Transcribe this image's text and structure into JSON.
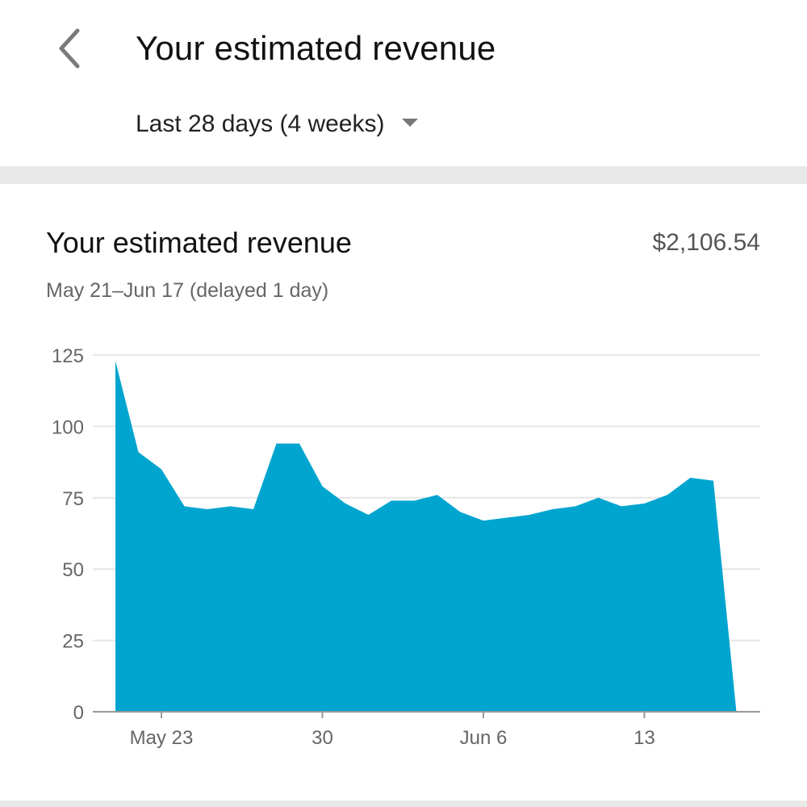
{
  "header": {
    "title": "Your estimated revenue",
    "back_icon": "back-chevron-icon"
  },
  "range_selector": {
    "label": "Last 28 days (4 weeks)",
    "icon": "dropdown-caret-icon"
  },
  "card": {
    "title": "Your estimated revenue",
    "total": "$2,106.54",
    "subtitle": "May 21–Jun 17 (delayed 1 day)"
  },
  "colors": {
    "area_fill": "#00a5cf",
    "gridline": "#e6e6e6",
    "axis": "#999999",
    "divider": "#e8e8e8"
  },
  "chart_data": {
    "type": "area",
    "x": [
      "May 21",
      "May 22",
      "May 23",
      "May 24",
      "May 25",
      "May 26",
      "May 27",
      "May 28",
      "May 29",
      "May 30",
      "May 31",
      "Jun 1",
      "Jun 2",
      "Jun 3",
      "Jun 4",
      "Jun 5",
      "Jun 6",
      "Jun 7",
      "Jun 8",
      "Jun 9",
      "Jun 10",
      "Jun 11",
      "Jun 12",
      "Jun 13",
      "Jun 14",
      "Jun 15",
      "Jun 16",
      "Jun 17"
    ],
    "series": [
      {
        "values": [
          123,
          91,
          85,
          72,
          71,
          72,
          71,
          94,
          94,
          79,
          73,
          69,
          74,
          74,
          76,
          70,
          67,
          68,
          69,
          71,
          72,
          75,
          72,
          73,
          76,
          82,
          81,
          0
        ]
      }
    ],
    "ylim": [
      0,
      125
    ],
    "yticks": [
      125,
      100,
      75,
      50,
      25,
      0
    ],
    "xticks": [
      {
        "label": "May 23",
        "x": "May 23"
      },
      {
        "label": "30",
        "x": "May 30"
      },
      {
        "label": "Jun 6",
        "x": "Jun 6"
      },
      {
        "label": "13",
        "x": "Jun 13"
      }
    ],
    "grid": true
  }
}
